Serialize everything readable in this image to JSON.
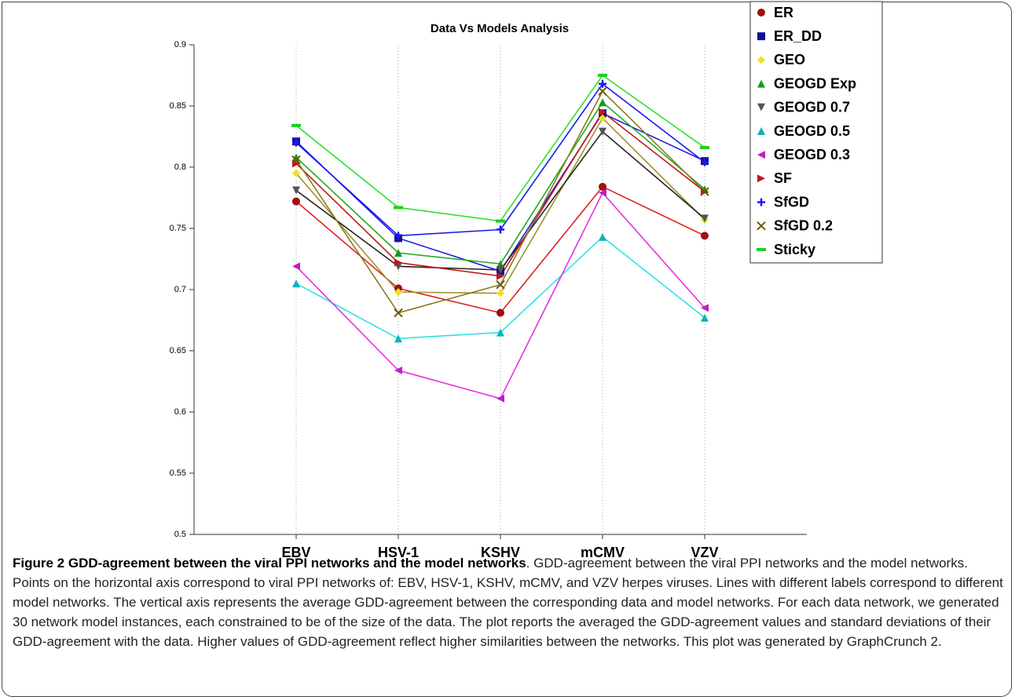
{
  "chart_data": {
    "type": "line",
    "title": "Data Vs Models Analysis",
    "categories": [
      "EBV",
      "HSV-1",
      "KSHV",
      "mCMV",
      "VZV"
    ],
    "ylim": [
      0.5,
      0.9
    ],
    "yticks": [
      0.5,
      0.55,
      0.6,
      0.65,
      0.7,
      0.75,
      0.8,
      0.85,
      0.9
    ],
    "grid": "x",
    "legend": "top-right",
    "series": [
      {
        "name": "ER",
        "color": "#e02020",
        "marker_color": "#a01010",
        "marker": "circle",
        "values": [
          0.772,
          0.701,
          0.681,
          0.784,
          0.744
        ]
      },
      {
        "name": "ER_DD",
        "color": "#2020e0",
        "marker_color": "#1010a0",
        "marker": "square",
        "values": [
          0.821,
          0.742,
          0.715,
          0.844,
          0.805
        ]
      },
      {
        "name": "GEO",
        "color": "#a09030",
        "marker_color": "#f0e020",
        "marker": "diamond",
        "values": [
          0.795,
          0.698,
          0.697,
          0.84,
          0.757
        ]
      },
      {
        "name": "GEOGD Exp",
        "color": "#22aa22",
        "marker_color": "#10a010",
        "marker": "triangle",
        "values": [
          0.808,
          0.73,
          0.721,
          0.853,
          0.782
        ]
      },
      {
        "name": "GEOGD 0.7",
        "color": "#222222",
        "marker_color": "#555555",
        "marker": "triangle-down",
        "values": [
          0.781,
          0.719,
          0.716,
          0.829,
          0.758
        ]
      },
      {
        "name": "GEOGD 0.5",
        "color": "#30e0e8",
        "marker_color": "#10b0b8",
        "marker": "triangle",
        "values": [
          0.705,
          0.66,
          0.665,
          0.743,
          0.677
        ]
      },
      {
        "name": "GEOGD 0.3",
        "color": "#e830e0",
        "marker_color": "#c020c0",
        "marker": "triangle-left",
        "values": [
          0.719,
          0.634,
          0.611,
          0.779,
          0.685
        ]
      },
      {
        "name": "SF",
        "color": "#c01818",
        "marker_color": "#c01818",
        "marker": "triangle-right",
        "values": [
          0.803,
          0.722,
          0.711,
          0.845,
          0.78
        ]
      },
      {
        "name": "SfGD",
        "color": "#1818f0",
        "marker_color": "#1818f0",
        "marker": "plus",
        "values": [
          0.82,
          0.744,
          0.749,
          0.868,
          0.804
        ]
      },
      {
        "name": "SfGD 0.2",
        "color": "#8a7a20",
        "marker_color": "#6a5a10",
        "marker": "x",
        "values": [
          0.806,
          0.681,
          0.704,
          0.862,
          0.78
        ]
      },
      {
        "name": "Sticky",
        "color": "#30e030",
        "marker_color": "#20d020",
        "marker": "dash",
        "values": [
          0.834,
          0.767,
          0.756,
          0.875,
          0.816
        ]
      }
    ]
  },
  "caption": {
    "label": "Figure 2 GDD-agreement between the viral PPI networks and the model networks",
    "text": ". GDD-agreement between the viral PPI networks and the model networks. Points on the horizontal axis correspond to viral PPI networks of: EBV, HSV-1, KSHV, mCMV, and VZV herpes viruses. Lines with different labels correspond to different model networks. The vertical axis represents the average GDD-agreement between the corresponding data and model networks. For each data network, we generated 30 network model instances, each constrained to be of the size of the data. The plot reports the averaged the GDD-agreement values and standard deviations of their GDD-agreement with the data. Higher values of GDD-agreement reflect higher similarities between the networks. This plot was generated by GraphCrunch 2."
  }
}
